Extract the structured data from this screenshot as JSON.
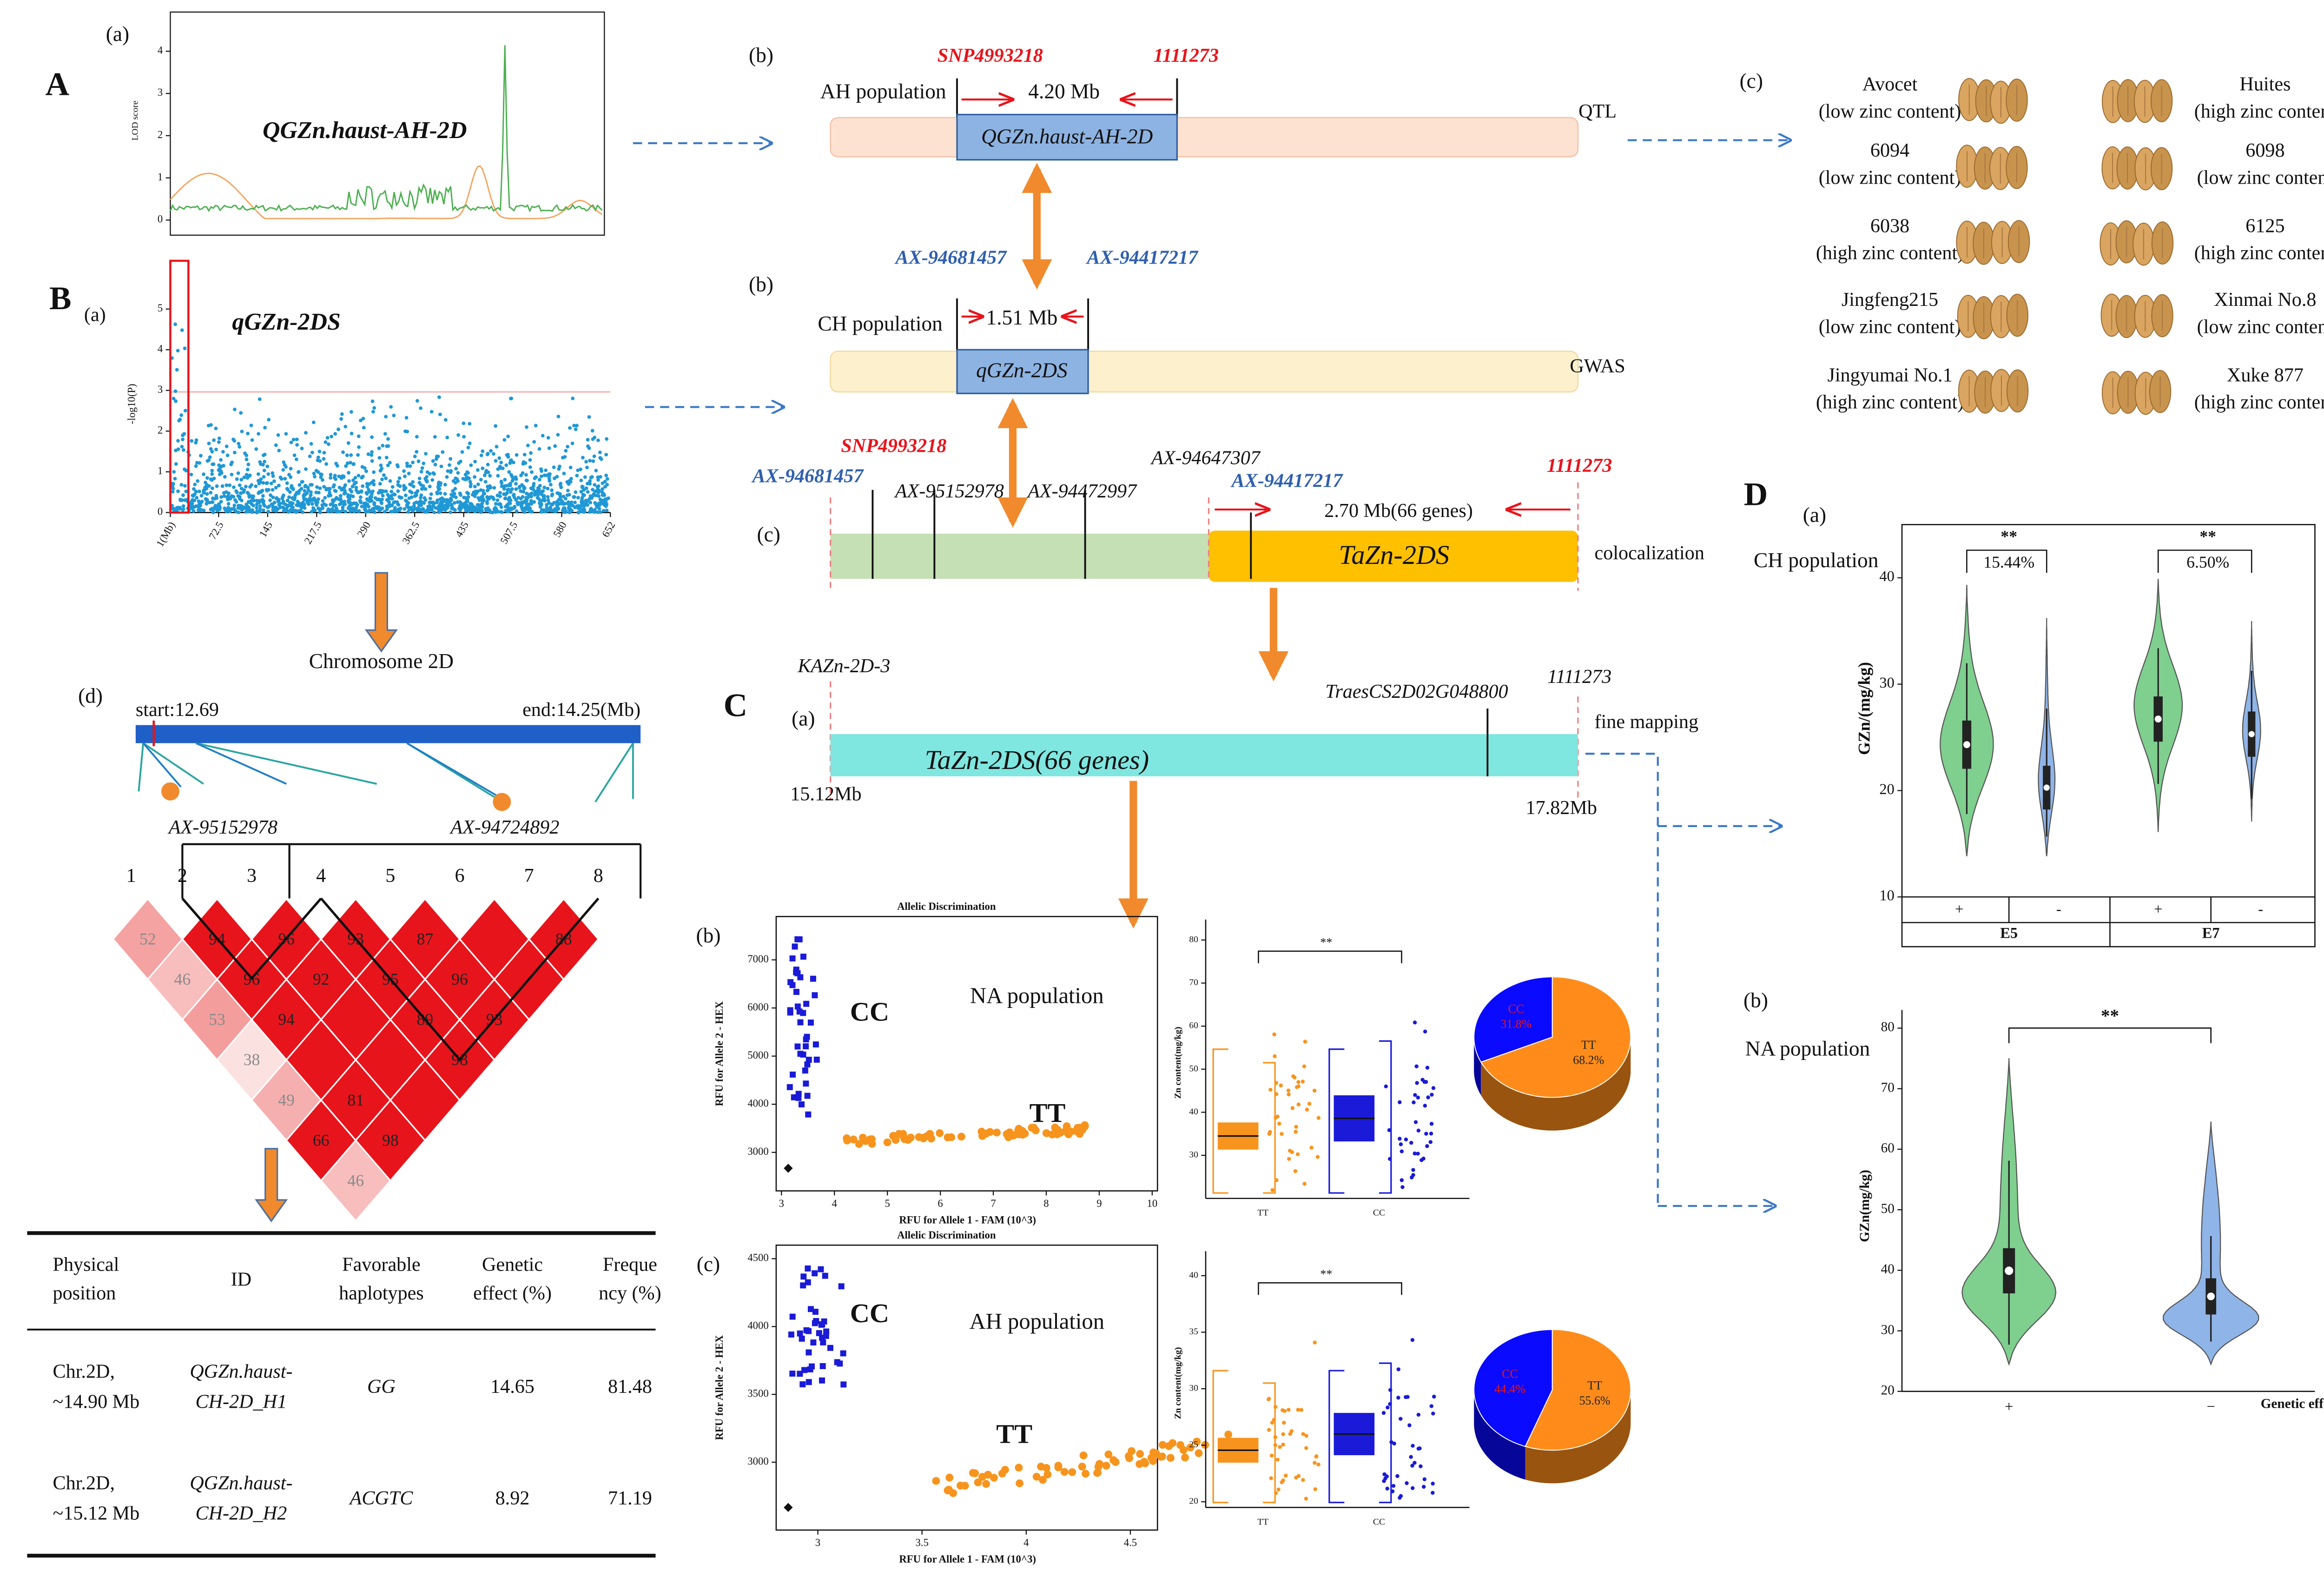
{
  "panel_a": {
    "label": "A",
    "sub": "(a)",
    "title": "QGZn.haust-AH-2D",
    "y_label": "LOD score",
    "ylim": [
      -0.3,
      4.85
    ],
    "yticks": [
      0,
      1,
      2,
      3,
      4
    ]
  },
  "panel_b": {
    "label": "B",
    "sub": "(a)",
    "title": "qGZn-2DS",
    "y_label": "-log10(P)",
    "ylim": [
      0,
      6.1
    ],
    "yticks": [
      0,
      1,
      2,
      3,
      4,
      5
    ],
    "xlim": [
      1,
      652
    ],
    "xticks": [
      {
        "value": 1,
        "label": "1(Mb)"
      },
      72.5,
      145,
      217.5,
      290,
      362.5,
      435,
      507.5,
      580,
      652
    ],
    "chromosome": "Chromosome 2D"
  },
  "qtl_map": {
    "ah": {
      "sub": "(b)",
      "left_marker": "SNP4993218",
      "right_marker": "1111273",
      "population": "AH population",
      "interval": "4.20 Mb",
      "region": "QGZn.haust-AH-2D",
      "method": "QTL"
    },
    "ch": {
      "sub": "(b)",
      "left_marker": "AX-94681457",
      "right_marker": "AX-94417217",
      "population": "CH population",
      "interval": "1.51 Mb",
      "region": "qGZn-2DS",
      "method": "GWAS"
    },
    "coloc": {
      "sub": "(c)",
      "markers": [
        "AX-94681457",
        "SNP4993218",
        "AX-95152978",
        "AX-94472997",
        "AX-94647307",
        "AX-94417217",
        "1111273"
      ],
      "interval": "2.70 Mb(66 genes)",
      "region": "TaZn-2DS",
      "method": "colocalization"
    }
  },
  "panel_c": {
    "label": "C",
    "sub": "(a)",
    "left_marker": "KAZn-2D-3",
    "gene": "TraesCS2D02G048800",
    "right_marker": "1111273",
    "method": "fine mapping",
    "region": "TaZn-2DS(66 genes)",
    "start": "15.12Mb",
    "end": "17.82Mb"
  },
  "grains": {
    "sub": "(c)",
    "rows": [
      [
        {
          "name": "Avocet",
          "note": "(low zinc content)"
        },
        {
          "name": "Huites",
          "note": "(high zinc content)"
        }
      ],
      [
        {
          "name": "6094",
          "note": "(low zinc content)"
        },
        {
          "name": "6098",
          "note": "(low zinc content)"
        }
      ],
      [
        {
          "name": "6038",
          "note": "(high zinc content)"
        },
        {
          "name": "6125",
          "note": "(high zinc content)"
        }
      ],
      [
        {
          "name": "Jingfeng215",
          "note": "(low zinc content)"
        },
        {
          "name": "Xinmai No.8",
          "note": "(low zinc content)"
        }
      ],
      [
        {
          "name": "Jingyumai No.1",
          "note": "(high zinc content)"
        },
        {
          "name": "Xuke 877",
          "note": "(high zinc content)"
        }
      ]
    ]
  },
  "haplotype": {
    "sub": "(d)",
    "start": "start:12.69",
    "end": "end:14.25(Mb)",
    "blocks": [
      "AX-95152978",
      "AX-94724892"
    ],
    "markers": [
      1,
      2,
      3,
      4,
      5,
      6,
      7,
      8
    ],
    "ld": [
      [
        52,
        94,
        96,
        93,
        87,
        null,
        88
      ],
      [
        46,
        96,
        92,
        95,
        96,
        null
      ],
      [
        53,
        94,
        null,
        89,
        93
      ],
      [
        38,
        null,
        null,
        98
      ],
      [
        49,
        81,
        null
      ],
      [
        66,
        98
      ],
      [
        46
      ]
    ]
  },
  "table": {
    "headers": [
      [
        "Physical",
        "position"
      ],
      [
        "ID"
      ],
      [
        "Favorable",
        "haplotypes"
      ],
      [
        "Genetic",
        "effect (%)"
      ],
      [
        "Freque",
        "ncy (%)"
      ]
    ],
    "rows": [
      [
        [
          "Chr.2D,",
          "~14.90 Mb"
        ],
        [
          "QGZn.haust-",
          "CH-2D_H1"
        ],
        [
          "GG"
        ],
        [
          "14.65"
        ],
        [
          "81.48"
        ]
      ],
      [
        [
          "Chr.2D,",
          "~15.12 Mb"
        ],
        [
          "QGZn.haust-",
          "CH-2D_H2"
        ],
        [
          "ACGTC"
        ],
        [
          "8.92"
        ],
        [
          "71.19"
        ]
      ]
    ]
  },
  "kasp": [
    {
      "sub": "(b)",
      "title": "Allelic Discrimination",
      "x_label": "RFU for Allele 1 - FAM (10^3)",
      "y_label": "RFU for Allele 2 - HEX",
      "xlim": [
        2.9,
        10.1
      ],
      "xticks": [
        3,
        4,
        5,
        6,
        7,
        8,
        9,
        10
      ],
      "ylim": [
        2200,
        7900
      ],
      "yticks": [
        3000,
        4000,
        5000,
        6000,
        7000
      ],
      "clusters": [
        "CC",
        "TT"
      ],
      "population": "NA population",
      "box": {
        "y_label": "Zn content(mg/kg)",
        "ylim": [
          20,
          83
        ],
        "yticks": [
          30,
          40,
          50,
          60,
          70,
          80
        ],
        "groups": [
          "TT",
          "CC"
        ],
        "sig": "**"
      },
      "pie": {
        "labels": [
          "CC",
          "TT"
        ],
        "values": [
          31.8,
          68.2
        ],
        "value_labels": [
          "31.8%",
          "68.2%"
        ],
        "colors": [
          "#0a0aff",
          "#ff8c1a"
        ]
      }
    },
    {
      "sub": "(c)",
      "title": "Allelic Discrimination",
      "x_label": "RFU for Allele 1 - FAM (10^3)",
      "y_label": "RFU for Allele 2 - HEX",
      "xlim": [
        2.8,
        4.63
      ],
      "xticks": [
        3,
        3.5,
        4,
        4.5
      ],
      "ylim": [
        2500,
        4600
      ],
      "yticks": [
        3000,
        3500,
        4000,
        4500
      ],
      "clusters": [
        "CC",
        "TT"
      ],
      "population": "AH population",
      "box": {
        "y_label": "Zn content(mg/kg)",
        "ylim": [
          19.5,
          41.5
        ],
        "yticks": [
          20,
          25,
          30,
          35,
          40
        ],
        "groups": [
          "TT",
          "CC"
        ],
        "sig": "**"
      },
      "pie": {
        "labels": [
          "CC",
          "TT"
        ],
        "values": [
          44.4,
          55.6
        ],
        "value_labels": [
          "44.4%",
          "55.6%"
        ],
        "colors": [
          "#0a0aff",
          "#ff8c1a"
        ]
      }
    }
  ],
  "panel_d": {
    "label": "D",
    "a": {
      "sub": "(a)",
      "population": "CH population",
      "y_label": "GZn/(mg/kg)",
      "ylim": [
        10,
        45
      ],
      "yticks": [
        10,
        20,
        30,
        40
      ],
      "groups": [
        "+",
        "-",
        "+",
        "-"
      ],
      "environments": [
        "E5",
        "E7"
      ],
      "sig": [
        "**",
        "**"
      ],
      "effects": [
        "15.44%",
        "6.50%"
      ]
    },
    "b": {
      "sub": "(b)",
      "population": "NA population",
      "y_label": "GZn(mg/kg)",
      "ylim": [
        20,
        83
      ],
      "yticks": [
        20,
        30,
        40,
        50,
        60,
        70,
        80
      ],
      "groups": [
        "+",
        "−"
      ],
      "sig": "**",
      "x_label": "Genetic effects"
    }
  }
}
